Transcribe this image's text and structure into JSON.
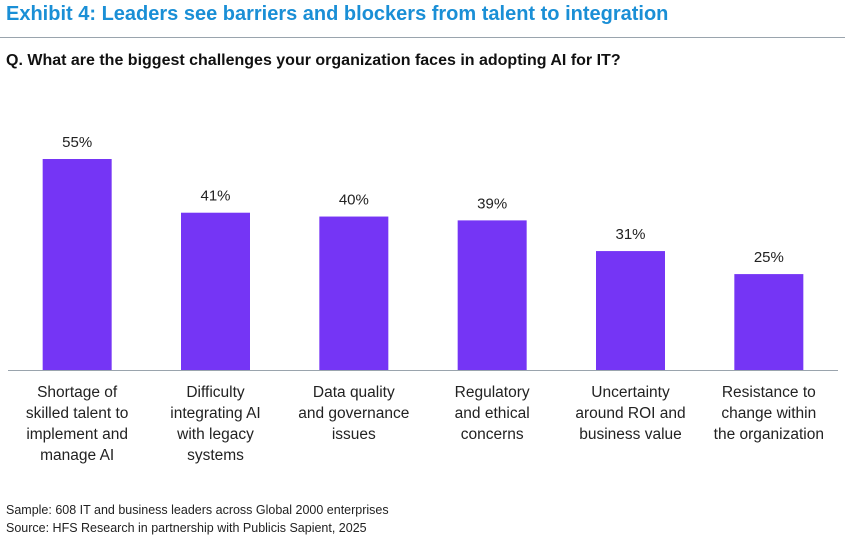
{
  "header": {
    "title": "Exhibit 4: Leaders see barriers and blockers from talent to integration",
    "question": "Q. What are the biggest challenges your organization faces in adopting AI for IT?"
  },
  "chart_data": {
    "type": "bar",
    "categories": [
      [
        "Shortage of",
        "skilled talent to",
        "implement and",
        "manage AI"
      ],
      [
        "Difficulty",
        "integrating AI",
        "with legacy",
        "systems"
      ],
      [
        "Data quality",
        "and governance",
        "issues"
      ],
      [
        "Regulatory",
        "and ethical",
        "concerns"
      ],
      [
        "Uncertainty",
        "around ROI and",
        "business value"
      ],
      [
        "Resistance to",
        "change within",
        "the organization"
      ]
    ],
    "values": [
      55,
      41,
      40,
      39,
      31,
      25
    ],
    "value_labels": [
      "55%",
      "41%",
      "40%",
      "39%",
      "31%",
      "25%"
    ],
    "ylim": [
      0,
      55
    ],
    "bar_color": "#7535f5",
    "axis_color": "#9aa4ad",
    "grid": false
  },
  "footer": {
    "sample": "Sample: 608 IT and business leaders across Global 2000 enterprises",
    "source": "Source: HFS Research in partnership with Publicis Sapient, 2025"
  },
  "colors": {
    "title": "#1a8fd6",
    "bar": "#7535f5"
  }
}
